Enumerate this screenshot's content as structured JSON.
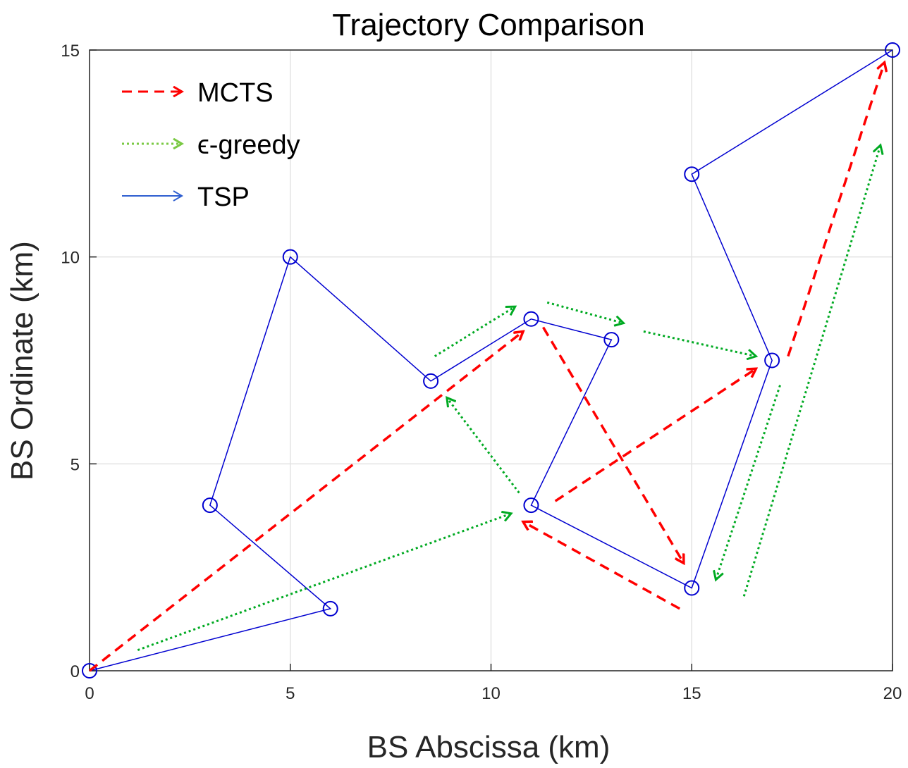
{
  "chart_data": {
    "type": "line",
    "title": "Trajectory Comparison",
    "xlabel": "BS Abscissa (km)",
    "ylabel": "BS Ordinate (km)",
    "xlim": [
      0,
      20
    ],
    "ylim": [
      0,
      15
    ],
    "xticks": [
      0,
      5,
      10,
      15,
      20
    ],
    "yticks": [
      0,
      5,
      10,
      15
    ],
    "grid": true,
    "legend_position": "top-left",
    "points": [
      {
        "x": 0,
        "y": 0
      },
      {
        "x": 6,
        "y": 1.5
      },
      {
        "x": 3,
        "y": 4
      },
      {
        "x": 5,
        "y": 10
      },
      {
        "x": 8.5,
        "y": 7
      },
      {
        "x": 11,
        "y": 8.5
      },
      {
        "x": 13,
        "y": 8
      },
      {
        "x": 11,
        "y": 4
      },
      {
        "x": 15,
        "y": 2
      },
      {
        "x": 17,
        "y": 7.5
      },
      {
        "x": 15,
        "y": 12
      },
      {
        "x": 20,
        "y": 15
      }
    ],
    "series": [
      {
        "name": "MCTS",
        "color": "#ff0000",
        "style": "dashed-arrow",
        "arrows": [
          [
            [
              0,
              0
            ],
            [
              10.8,
              8.2
            ]
          ],
          [
            [
              11.3,
              8.3
            ],
            [
              14.8,
              2.6
            ]
          ],
          [
            [
              14.7,
              1.5
            ],
            [
              10.8,
              3.6
            ]
          ],
          [
            [
              11.6,
              4.1
            ],
            [
              16.6,
              7.3
            ]
          ],
          [
            [
              17.4,
              7.6
            ],
            [
              19.8,
              14.7
            ]
          ]
        ]
      },
      {
        "name": "ϵ-greedy",
        "color": "#00aa22",
        "style": "dotted-arrow",
        "arrows": [
          [
            [
              1.2,
              0.5
            ],
            [
              10.5,
              3.8
            ]
          ],
          [
            [
              10.7,
              4.3
            ],
            [
              8.9,
              6.6
            ]
          ],
          [
            [
              8.6,
              7.6
            ],
            [
              10.6,
              8.8
            ]
          ],
          [
            [
              11.4,
              8.9
            ],
            [
              13.3,
              8.4
            ]
          ],
          [
            [
              13.8,
              8.2
            ],
            [
              16.6,
              7.6
            ]
          ],
          [
            [
              17.2,
              6.9
            ],
            [
              15.6,
              2.2
            ]
          ],
          [
            [
              16.3,
              1.8
            ],
            [
              19.7,
              12.7
            ]
          ]
        ]
      },
      {
        "name": "TSP",
        "color": "#0000d0",
        "style": "solid-line-circles",
        "path": [
          0,
          1,
          2,
          3,
          4,
          5,
          6,
          7,
          8,
          9,
          10,
          11
        ]
      }
    ]
  },
  "legend": {
    "items": [
      {
        "label": "MCTS",
        "color": "#ff0000",
        "dash": "14 9"
      },
      {
        "label": "ϵ-greedy",
        "color": "#7ac943",
        "dash": "3 4"
      },
      {
        "label": "TSP",
        "color": "#2f5fd0",
        "dash": ""
      }
    ]
  }
}
